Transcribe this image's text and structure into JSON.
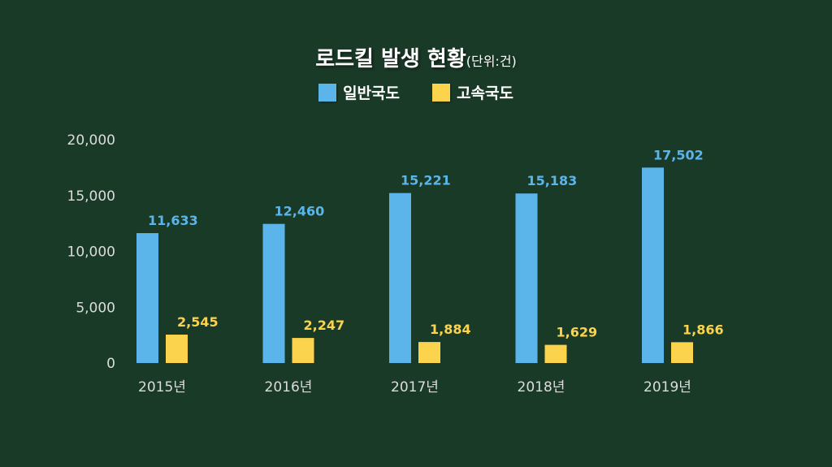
{
  "title": "로드킬 발생 현황",
  "unit": "(단위:건)",
  "colors": {
    "background": "#1a3a28",
    "general": "#5cb5ea",
    "express": "#fcd34d",
    "text": "#ffffff",
    "axis_text": "#dcdcdc"
  },
  "chart_data": {
    "type": "bar",
    "title": "로드킬 발생 현황",
    "subtitle": "(단위:건)",
    "categories": [
      "2015년",
      "2016년",
      "2017년",
      "2018년",
      "2019년"
    ],
    "series": [
      {
        "name": "일반국도",
        "values": [
          11633,
          12460,
          15221,
          15183,
          17502
        ],
        "labels": [
          "11,633",
          "12,460",
          "15,221",
          "15,183",
          "17,502"
        ]
      },
      {
        "name": "고속국도",
        "values": [
          2545,
          2247,
          1884,
          1629,
          1866
        ],
        "labels": [
          "2,545",
          "2,247",
          "1,884",
          "1,629",
          "1,866"
        ]
      }
    ],
    "yticks": [
      0,
      5000,
      10000,
      15000,
      20000
    ],
    "ytick_labels": [
      "0",
      "5,000",
      "10,000",
      "15,000",
      "20,000"
    ],
    "ylim": [
      0,
      20000
    ],
    "xlabel": "",
    "ylabel": "",
    "grid": false,
    "legend": "top-center"
  }
}
